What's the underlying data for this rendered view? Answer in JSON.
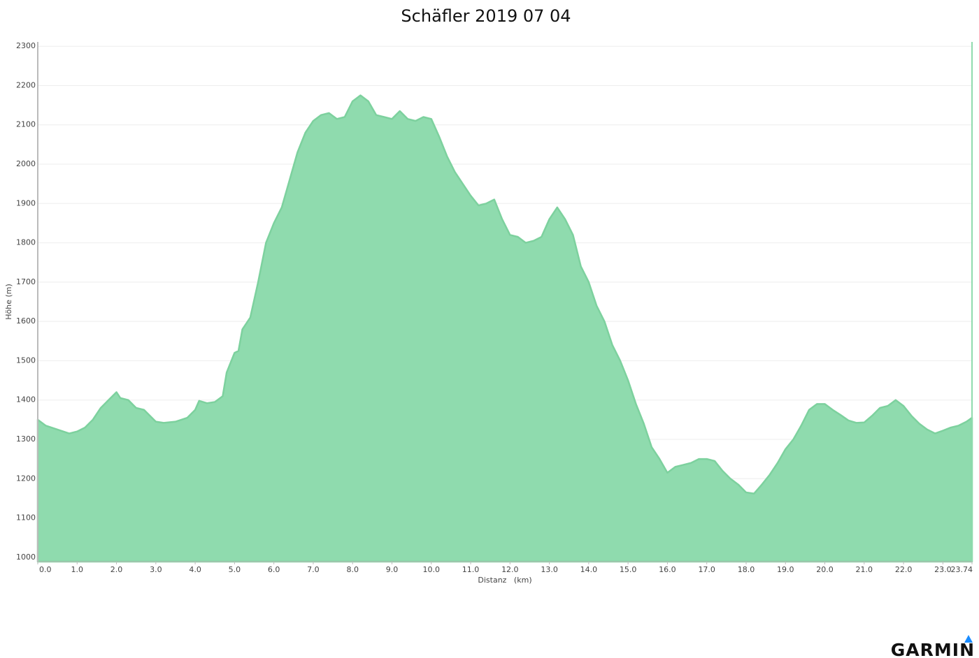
{
  "chart_data": {
    "type": "area",
    "title": "Schäfler 2019 07 04",
    "x_label": "Distanz   (km)",
    "y_label": "Höhe (m)",
    "color": "#8fdbae",
    "line_color": "#7dd19e",
    "grid": true,
    "x": [
      0,
      0.2,
      0.5,
      0.8,
      1.0,
      1.2,
      1.4,
      1.6,
      1.8,
      2.0,
      2.1,
      2.3,
      2.5,
      2.7,
      3.0,
      3.2,
      3.5,
      3.8,
      4.0,
      4.1,
      4.3,
      4.5,
      4.7,
      4.8,
      5.0,
      5.1,
      5.2,
      5.4,
      5.6,
      5.8,
      6.0,
      6.2,
      6.4,
      6.6,
      6.8,
      7.0,
      7.2,
      7.4,
      7.6,
      7.8,
      8.0,
      8.2,
      8.4,
      8.6,
      8.8,
      9.0,
      9.2,
      9.4,
      9.6,
      9.8,
      10.0,
      10.2,
      10.4,
      10.6,
      10.8,
      11.0,
      11.2,
      11.4,
      11.6,
      11.8,
      12.0,
      12.2,
      12.4,
      12.6,
      12.8,
      13.0,
      13.2,
      13.4,
      13.6,
      13.8,
      14.0,
      14.2,
      14.4,
      14.6,
      14.8,
      15.0,
      15.2,
      15.4,
      15.6,
      15.8,
      16.0,
      16.2,
      16.4,
      16.6,
      16.8,
      17.0,
      17.2,
      17.4,
      17.6,
      17.8,
      18.0,
      18.2,
      18.4,
      18.6,
      18.8,
      19.0,
      19.2,
      19.4,
      19.6,
      19.8,
      20.0,
      20.2,
      20.4,
      20.6,
      20.8,
      21.0,
      21.2,
      21.4,
      21.6,
      21.8,
      22.0,
      22.2,
      22.4,
      22.6,
      22.8,
      23.0,
      23.2,
      23.4,
      23.6,
      23.74
    ],
    "values": [
      1350,
      1335,
      1325,
      1315,
      1320,
      1330,
      1350,
      1380,
      1400,
      1420,
      1405,
      1400,
      1380,
      1375,
      1345,
      1342,
      1345,
      1355,
      1375,
      1398,
      1392,
      1395,
      1410,
      1470,
      1520,
      1525,
      1580,
      1610,
      1700,
      1800,
      1850,
      1890,
      1960,
      2030,
      2080,
      2110,
      2125,
      2130,
      2115,
      2120,
      2160,
      2175,
      2160,
      2125,
      2120,
      2115,
      2135,
      2115,
      2110,
      2120,
      2115,
      2070,
      2020,
      1980,
      1950,
      1920,
      1895,
      1900,
      1910,
      1860,
      1820,
      1815,
      1800,
      1805,
      1815,
      1860,
      1890,
      1860,
      1820,
      1740,
      1700,
      1640,
      1600,
      1540,
      1500,
      1450,
      1390,
      1340,
      1280,
      1250,
      1215,
      1230,
      1235,
      1240,
      1250,
      1250,
      1245,
      1220,
      1200,
      1185,
      1165,
      1162,
      1185,
      1210,
      1240,
      1275,
      1300,
      1335,
      1375,
      1390,
      1390,
      1375,
      1362,
      1348,
      1342,
      1343,
      1360,
      1380,
      1385,
      1400,
      1385,
      1360,
      1340,
      1325,
      1315,
      1322,
      1330,
      1335,
      1345,
      1355
    ],
    "xlim": [
      0,
      23.74
    ],
    "xticks": [
      {
        "value": 0,
        "label": "0.0"
      },
      {
        "value": 1,
        "label": "1.0"
      },
      {
        "value": 2,
        "label": "2.0"
      },
      {
        "value": 3,
        "label": "3.0"
      },
      {
        "value": 4,
        "label": "4.0"
      },
      {
        "value": 5,
        "label": "5.0"
      },
      {
        "value": 6,
        "label": "6.0"
      },
      {
        "value": 7,
        "label": "7.0"
      },
      {
        "value": 8,
        "label": "8.0"
      },
      {
        "value": 9,
        "label": "9.0"
      },
      {
        "value": 10,
        "label": "10.0"
      },
      {
        "value": 11,
        "label": "11.0"
      },
      {
        "value": 12,
        "label": "12.0"
      },
      {
        "value": 13,
        "label": "13.0"
      },
      {
        "value": 14,
        "label": "14.0"
      },
      {
        "value": 15,
        "label": "15.0"
      },
      {
        "value": 16,
        "label": "16.0"
      },
      {
        "value": 17,
        "label": "17.0"
      },
      {
        "value": 18,
        "label": "18.0"
      },
      {
        "value": 19,
        "label": "19.0"
      },
      {
        "value": 20,
        "label": "20.0"
      },
      {
        "value": 21,
        "label": "21.0"
      },
      {
        "value": 22,
        "label": "22.0"
      },
      {
        "value": 23,
        "label": "23.0"
      },
      23.74
    ],
    "ylim": [
      989,
      2311
    ],
    "yticks": [
      1000,
      1100,
      1200,
      1300,
      1400,
      1500,
      1600,
      1700,
      1800,
      1900,
      2000,
      2100,
      2200,
      2300
    ]
  },
  "logo": "GARMIN"
}
